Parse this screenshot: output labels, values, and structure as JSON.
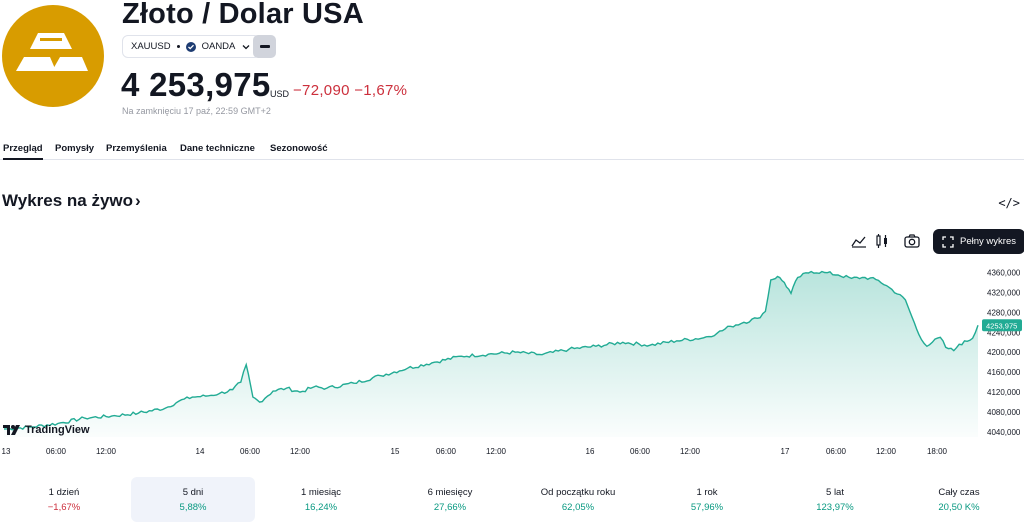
{
  "header": {
    "title": "Złoto / Dolar USA",
    "symbol": "XAUUSD",
    "exchange": "OANDA",
    "price": "4 253,975",
    "currency": "USD",
    "change": "−72,090",
    "change_pct": "−1,67%",
    "closed_note": "Na zamknięciu 17 paź, 22:59 GMT+2",
    "colors": {
      "brand_gold": "#d89c00",
      "negative": "#cc2f3c",
      "positive": "#089981"
    }
  },
  "tabs": [
    {
      "label": "Przegląd",
      "active": true
    },
    {
      "label": "Pomysły"
    },
    {
      "label": "Przemyślenia"
    },
    {
      "label": "Dane techniczne"
    },
    {
      "label": "Sezonowość"
    }
  ],
  "live_chart": {
    "title": "Wykres na żywo",
    "chevron": "›",
    "embed_icon": "</>",
    "full_chart_label": "Pełny wykres",
    "toolbar_icons": [
      "area-chart-icon",
      "candles-icon",
      "camera-icon",
      "fullscreen-icon"
    ],
    "watermark": "TradingView"
  },
  "chart_data": {
    "type": "area",
    "x_ticks": [
      "13",
      "06:00",
      "12:00",
      "14",
      "06:00",
      "12:00",
      "15",
      "06:00",
      "12:00",
      "16",
      "06:00",
      "12:00",
      "17",
      "06:00",
      "12:00",
      "18:00"
    ],
    "y_ticks": [
      "4360,000",
      "4320,000",
      "4280,000",
      "4240,000",
      "4200,000",
      "4160,000",
      "4120,000",
      "4080,000",
      "4040,000"
    ],
    "ylim": [
      4030,
      4385
    ],
    "last_value_label": "4253,975",
    "last_value": 4253.975,
    "line_color": "#22ab94",
    "points": [
      [
        0,
        4046
      ],
      [
        2,
        4050
      ],
      [
        4,
        4057
      ],
      [
        6,
        4068
      ],
      [
        8,
        4072
      ],
      [
        10,
        4078
      ],
      [
        12,
        4088
      ],
      [
        13,
        4102
      ],
      [
        14,
        4110
      ],
      [
        15,
        4112
      ],
      [
        16,
        4117
      ],
      [
        17,
        4125
      ],
      [
        17.6,
        4140
      ],
      [
        18,
        4175
      ],
      [
        18.5,
        4110
      ],
      [
        19,
        4100
      ],
      [
        20,
        4122
      ],
      [
        21,
        4128
      ],
      [
        22,
        4120
      ],
      [
        23,
        4130
      ],
      [
        24,
        4128
      ],
      [
        26,
        4138
      ],
      [
        28,
        4153
      ],
      [
        30,
        4168
      ],
      [
        32,
        4180
      ],
      [
        34,
        4192
      ],
      [
        36,
        4196
      ],
      [
        38,
        4200
      ],
      [
        40,
        4195
      ],
      [
        42,
        4206
      ],
      [
        44,
        4212
      ],
      [
        46,
        4220
      ],
      [
        48,
        4214
      ],
      [
        50,
        4223
      ],
      [
        52,
        4229
      ],
      [
        53,
        4238
      ],
      [
        54,
        4252
      ],
      [
        55,
        4260
      ],
      [
        56,
        4268
      ],
      [
        56.6,
        4282
      ],
      [
        57,
        4345
      ],
      [
        57.5,
        4352
      ],
      [
        58,
        4340
      ],
      [
        58.5,
        4318
      ],
      [
        59,
        4350
      ],
      [
        60,
        4362
      ],
      [
        61,
        4360
      ],
      [
        62,
        4355
      ],
      [
        63,
        4348
      ],
      [
        64,
        4350
      ],
      [
        65,
        4344
      ],
      [
        66,
        4326
      ],
      [
        67,
        4305
      ],
      [
        67.5,
        4270
      ],
      [
        68,
        4236
      ],
      [
        68.6,
        4212
      ],
      [
        69,
        4220
      ],
      [
        69.6,
        4230
      ],
      [
        70,
        4210
      ],
      [
        70.6,
        4203
      ],
      [
        71,
        4216
      ],
      [
        71.6,
        4222
      ],
      [
        72,
        4228
      ],
      [
        72.4,
        4253.975
      ]
    ]
  },
  "periods": [
    {
      "label": "1 dzień",
      "value": "−1,67%",
      "trend": "down"
    },
    {
      "label": "5 dni",
      "value": "5,88%",
      "trend": "up",
      "active": true
    },
    {
      "label": "1 miesiąc",
      "value": "16,24%",
      "trend": "up"
    },
    {
      "label": "6 miesięcy",
      "value": "27,66%",
      "trend": "up"
    },
    {
      "label": "Od początku roku",
      "value": "62,05%",
      "trend": "up"
    },
    {
      "label": "1 rok",
      "value": "57,96%",
      "trend": "up"
    },
    {
      "label": "5 lat",
      "value": "123,97%",
      "trend": "up"
    },
    {
      "label": "Cały czas",
      "value": "20,50 K%",
      "trend": "up"
    }
  ]
}
